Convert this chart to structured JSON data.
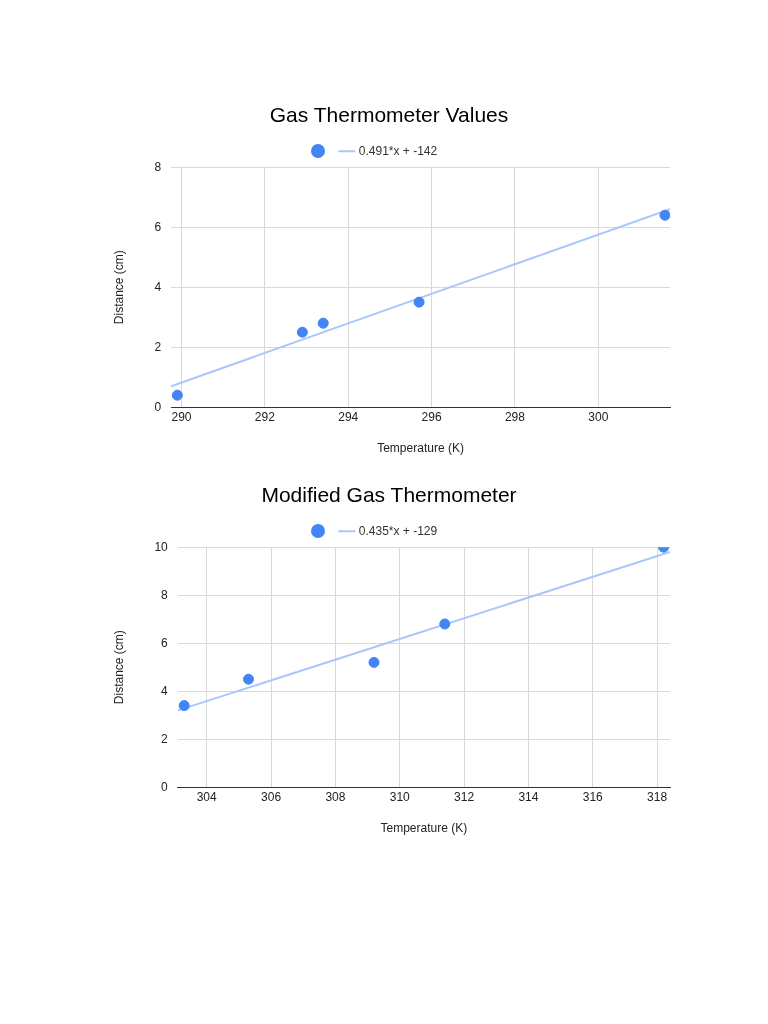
{
  "chart_data": [
    {
      "type": "scatter",
      "title": "Gas Thermometer Values",
      "xlabel": "Temperature (K)",
      "ylabel": "Distance (cm)",
      "xlim": [
        289.75,
        301.72
      ],
      "ylim": [
        0,
        8
      ],
      "xticks": [
        290,
        292,
        294,
        296,
        298,
        300
      ],
      "yticks": [
        0,
        2,
        4,
        6,
        8
      ],
      "grid": true,
      "legend": "top",
      "marker": "circle",
      "series": [
        {
          "color": "#4285f4",
          "x": [
            289.9,
            292.9,
            293.4,
            295.7,
            301.6
          ],
          "values": [
            0.4,
            2.5,
            2.8,
            3.5,
            6.4
          ]
        },
        {
          "type": "line",
          "name": "0.491*x + -142",
          "color": "#a8c7fa",
          "marker": "none",
          "x": [
            289.75,
            301.72
          ],
          "values": [
            0.7,
            6.6
          ]
        }
      ]
    },
    {
      "type": "scatter",
      "title": "Modified Gas Thermometer",
      "xlabel": "Temperature (K)",
      "ylabel": "Distance (cm)",
      "xlim": [
        303.1,
        318.4
      ],
      "ylim": [
        0,
        10
      ],
      "xticks": [
        304,
        306,
        308,
        310,
        312,
        314,
        316,
        318
      ],
      "yticks": [
        0,
        2,
        4,
        6,
        8,
        10
      ],
      "grid": true,
      "legend": "top",
      "marker": "circle",
      "series": [
        {
          "color": "#4285f4",
          "x": [
            303.3,
            305.3,
            309.2,
            311.4,
            318.2
          ],
          "values": [
            3.4,
            4.5,
            5.2,
            6.8,
            10.0
          ]
        },
        {
          "type": "line",
          "name": "0.435*x + -129",
          "color": "#a8c7fa",
          "marker": "none",
          "x": [
            303.1,
            318.4
          ],
          "values": [
            3.2,
            9.8
          ]
        }
      ]
    }
  ]
}
